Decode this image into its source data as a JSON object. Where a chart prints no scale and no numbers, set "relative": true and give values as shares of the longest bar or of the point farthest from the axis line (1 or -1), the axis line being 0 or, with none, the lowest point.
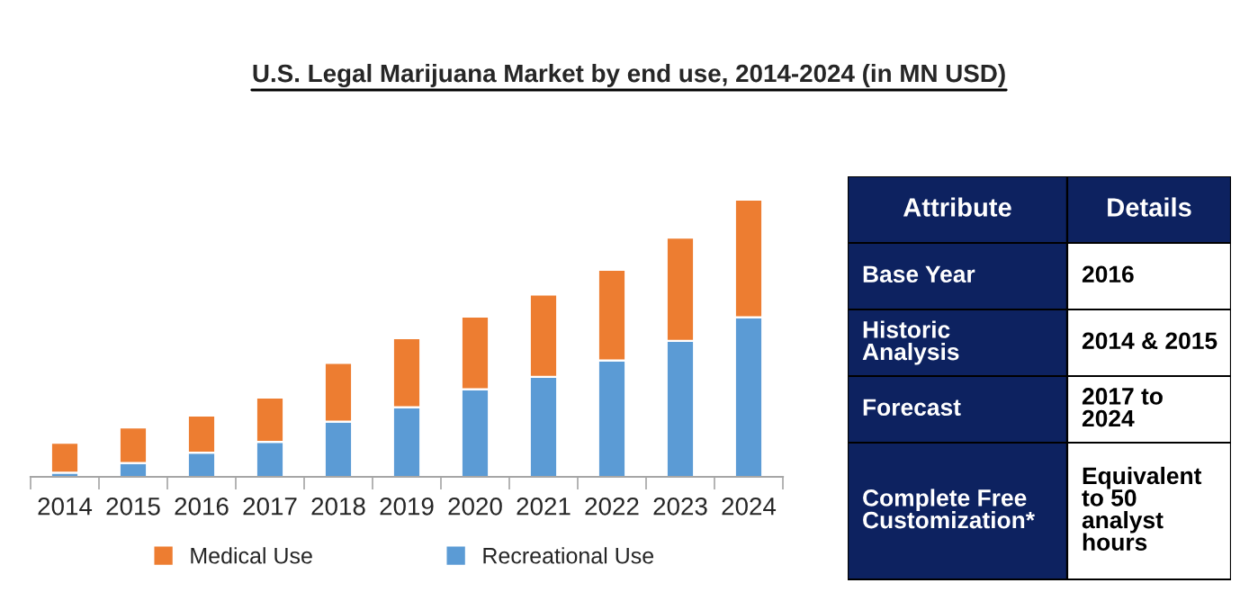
{
  "chart_data": [
    {
      "type": "bar",
      "title": "U.S. Legal Marijuana Market by end use, 2014-2024 (in MN USD)",
      "relative": true,
      "stacked": true,
      "legend": "bottom",
      "categories": [
        "2014",
        "2015",
        "2016",
        "2017",
        "2018",
        "2019",
        "2020",
        "2021",
        "2022",
        "2023",
        "2024"
      ],
      "series": [
        {
          "name": "Recreational Use",
          "color": "#5b9bd5",
          "values": [
            0.015,
            0.05,
            0.087,
            0.126,
            0.199,
            0.251,
            0.316,
            0.361,
            0.42,
            0.491,
            0.576
          ]
        },
        {
          "name": "Medical Use",
          "color": "#ed7d31",
          "values": [
            0.108,
            0.128,
            0.134,
            0.16,
            0.212,
            0.249,
            0.262,
            0.297,
            0.327,
            0.372,
            0.424
          ]
        }
      ]
    },
    {
      "type": "other",
      "annotations": [
        "Attribute",
        "Details",
        "Base Year",
        "2016",
        "Historic\nAnalysis",
        "2014 & 2015",
        "Forecast",
        "2017 to\n2024",
        "Complete Free\nCustomization*",
        "Equivalent\nto 50\nanalyst\nhours"
      ]
    }
  ]
}
